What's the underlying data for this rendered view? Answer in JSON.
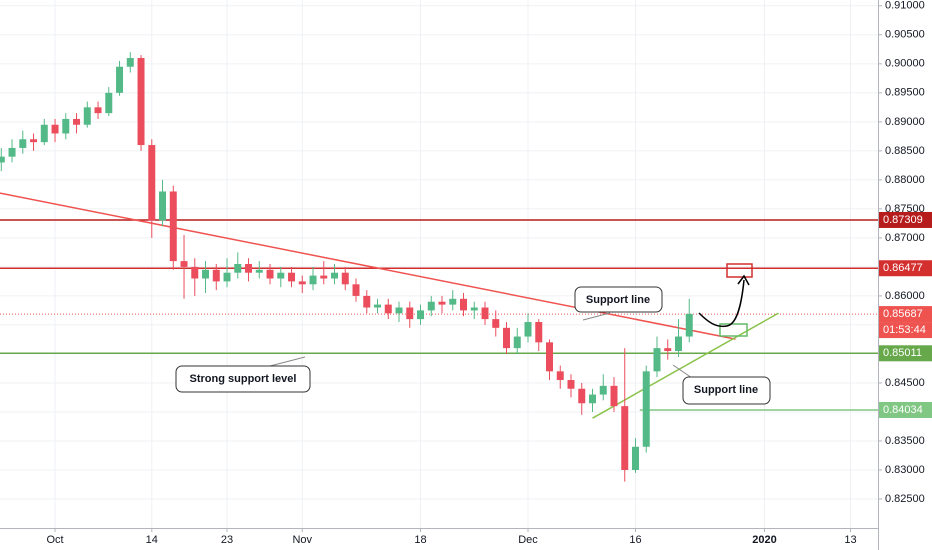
{
  "chart_data": {
    "type": "candlestick",
    "xlim": [
      -5.12,
      76.56
    ],
    "ylim": [
      0.82,
      0.911
    ],
    "xticks": [
      {
        "value": 0,
        "label": "Oct"
      },
      {
        "value": 9,
        "label": "14"
      },
      {
        "value": 16,
        "label": "23"
      },
      {
        "value": 23,
        "label": "Nov"
      },
      {
        "value": 34,
        "label": "18"
      },
      {
        "value": 44,
        "label": "Dec"
      },
      {
        "value": 54,
        "label": "16"
      },
      {
        "value": 66,
        "label": "2020"
      },
      {
        "value": 74,
        "label": "13"
      }
    ],
    "yticks": [
      {
        "value": 0.825,
        "label": "0.82500"
      },
      {
        "value": 0.83,
        "label": "0.83000"
      },
      {
        "value": 0.835,
        "label": "0.83500"
      },
      {
        "value": 0.84,
        "label": "0.84000"
      },
      {
        "value": 0.845,
        "label": "0.84500"
      },
      {
        "value": 0.85,
        "label": "0.85000"
      },
      {
        "value": 0.855,
        "label": "0.85500"
      },
      {
        "value": 0.86,
        "label": "0.86000"
      },
      {
        "value": 0.865,
        "label": "0.86500"
      },
      {
        "value": 0.87,
        "label": "0.87000"
      },
      {
        "value": 0.875,
        "label": "0.87500"
      },
      {
        "value": 0.88,
        "label": "0.88000"
      },
      {
        "value": 0.885,
        "label": "0.88500"
      },
      {
        "value": 0.89,
        "label": "0.89000"
      },
      {
        "value": 0.895,
        "label": "0.89500"
      },
      {
        "value": 0.9,
        "label": "0.90000"
      },
      {
        "value": 0.905,
        "label": "0.90500"
      },
      {
        "value": 0.91,
        "label": "0.91000"
      }
    ],
    "grid": true,
    "up_color": "#53b987",
    "down_color": "#eb4d5c",
    "x": [
      -5,
      -4,
      -3,
      -2,
      -1,
      0,
      1,
      2,
      3,
      4,
      5,
      6,
      7,
      8,
      9,
      10,
      11,
      12,
      13,
      14,
      15,
      16,
      17,
      18,
      19,
      20,
      21,
      22,
      23,
      24,
      25,
      26,
      27,
      28,
      29,
      30,
      31,
      32,
      33,
      34,
      35,
      36,
      37,
      38,
      39,
      40,
      41,
      42,
      43,
      44,
      45,
      46,
      47,
      48,
      49,
      50,
      51,
      52,
      53,
      54,
      55,
      56,
      57,
      58,
      59
    ],
    "open": [
      0.883,
      0.884,
      0.8855,
      0.887,
      0.8865,
      0.8895,
      0.888,
      0.8905,
      0.8895,
      0.8925,
      0.8915,
      0.895,
      0.8995,
      0.901,
      0.886,
      0.873,
      0.878,
      0.866,
      0.865,
      0.863,
      0.8645,
      0.8625,
      0.864,
      0.8655,
      0.864,
      0.8645,
      0.863,
      0.864,
      0.8625,
      0.862,
      0.8635,
      0.863,
      0.864,
      0.862,
      0.86,
      0.858,
      0.8585,
      0.857,
      0.858,
      0.856,
      0.8575,
      0.859,
      0.8585,
      0.8595,
      0.8575,
      0.858,
      0.856,
      0.8545,
      0.851,
      0.853,
      0.8555,
      0.852,
      0.847,
      0.8455,
      0.844,
      0.8415,
      0.843,
      0.8445,
      0.841,
      0.83,
      0.834,
      0.847,
      0.851,
      0.8505,
      0.853
    ],
    "high": [
      0.8855,
      0.887,
      0.8885,
      0.888,
      0.8905,
      0.8905,
      0.8915,
      0.8915,
      0.8935,
      0.8935,
      0.896,
      0.9005,
      0.902,
      0.9015,
      0.887,
      0.88,
      0.879,
      0.8705,
      0.8665,
      0.866,
      0.8655,
      0.8665,
      0.8675,
      0.8665,
      0.866,
      0.8655,
      0.865,
      0.865,
      0.8635,
      0.865,
      0.866,
      0.8655,
      0.865,
      0.863,
      0.861,
      0.8595,
      0.8595,
      0.859,
      0.859,
      0.8585,
      0.86,
      0.86,
      0.861,
      0.8605,
      0.859,
      0.859,
      0.8575,
      0.8555,
      0.8545,
      0.857,
      0.856,
      0.8525,
      0.848,
      0.8465,
      0.845,
      0.844,
      0.8465,
      0.846,
      0.851,
      0.8355,
      0.848,
      0.853,
      0.8525,
      0.856,
      0.8595
    ],
    "low": [
      0.8815,
      0.883,
      0.8845,
      0.885,
      0.886,
      0.8865,
      0.887,
      0.888,
      0.889,
      0.8905,
      0.891,
      0.8945,
      0.8985,
      0.885,
      0.87,
      0.872,
      0.8645,
      0.8595,
      0.86,
      0.8605,
      0.861,
      0.8615,
      0.863,
      0.8625,
      0.863,
      0.862,
      0.8615,
      0.8615,
      0.8605,
      0.861,
      0.862,
      0.862,
      0.861,
      0.859,
      0.857,
      0.857,
      0.856,
      0.8555,
      0.8545,
      0.855,
      0.8565,
      0.857,
      0.8575,
      0.8565,
      0.856,
      0.855,
      0.853,
      0.85,
      0.85,
      0.852,
      0.8505,
      0.8455,
      0.844,
      0.8425,
      0.8395,
      0.84,
      0.842,
      0.84,
      0.828,
      0.8295,
      0.833,
      0.846,
      0.849,
      0.8495,
      0.852
    ],
    "close": [
      0.884,
      0.8855,
      0.887,
      0.8865,
      0.8895,
      0.888,
      0.8905,
      0.8895,
      0.8925,
      0.8915,
      0.895,
      0.8995,
      0.901,
      0.886,
      0.873,
      0.878,
      0.866,
      0.865,
      0.863,
      0.8645,
      0.8625,
      0.864,
      0.8655,
      0.864,
      0.8645,
      0.863,
      0.864,
      0.8625,
      0.862,
      0.8635,
      0.863,
      0.864,
      0.862,
      0.86,
      0.858,
      0.8585,
      0.857,
      0.858,
      0.856,
      0.8575,
      0.859,
      0.8585,
      0.8595,
      0.8575,
      0.858,
      0.856,
      0.8545,
      0.851,
      0.853,
      0.8555,
      0.852,
      0.847,
      0.8455,
      0.844,
      0.8415,
      0.843,
      0.8445,
      0.841,
      0.83,
      0.834,
      0.847,
      0.851,
      0.8505,
      0.853,
      0.8569
    ],
    "levels": [
      {
        "value": 0.87309,
        "color": "#b71c1c",
        "x_start": -5.12
      },
      {
        "value": 0.86477,
        "color": "#d32f2f",
        "x_start": -5.12
      },
      {
        "value": 0.85011,
        "color": "#66a84a",
        "x_start": -5.12
      },
      {
        "value": 0.84034,
        "color": "#81c784",
        "x_start": 54.4
      }
    ],
    "current_price": 0.85687,
    "current_color": "#ef5350",
    "countdown": "01:53:44",
    "trend_lines": [
      {
        "color": "#ef5350",
        "x": [
          -5.12,
          63.3
        ],
        "y": [
          0.87772,
          0.85255
        ]
      },
      {
        "color": "#8bc34a",
        "x": [
          50.0,
          67.3
        ],
        "y": [
          0.83893,
          0.85703
        ]
      }
    ],
    "annotations": [
      "Support line",
      "Strong support level",
      "Support line"
    ]
  }
}
